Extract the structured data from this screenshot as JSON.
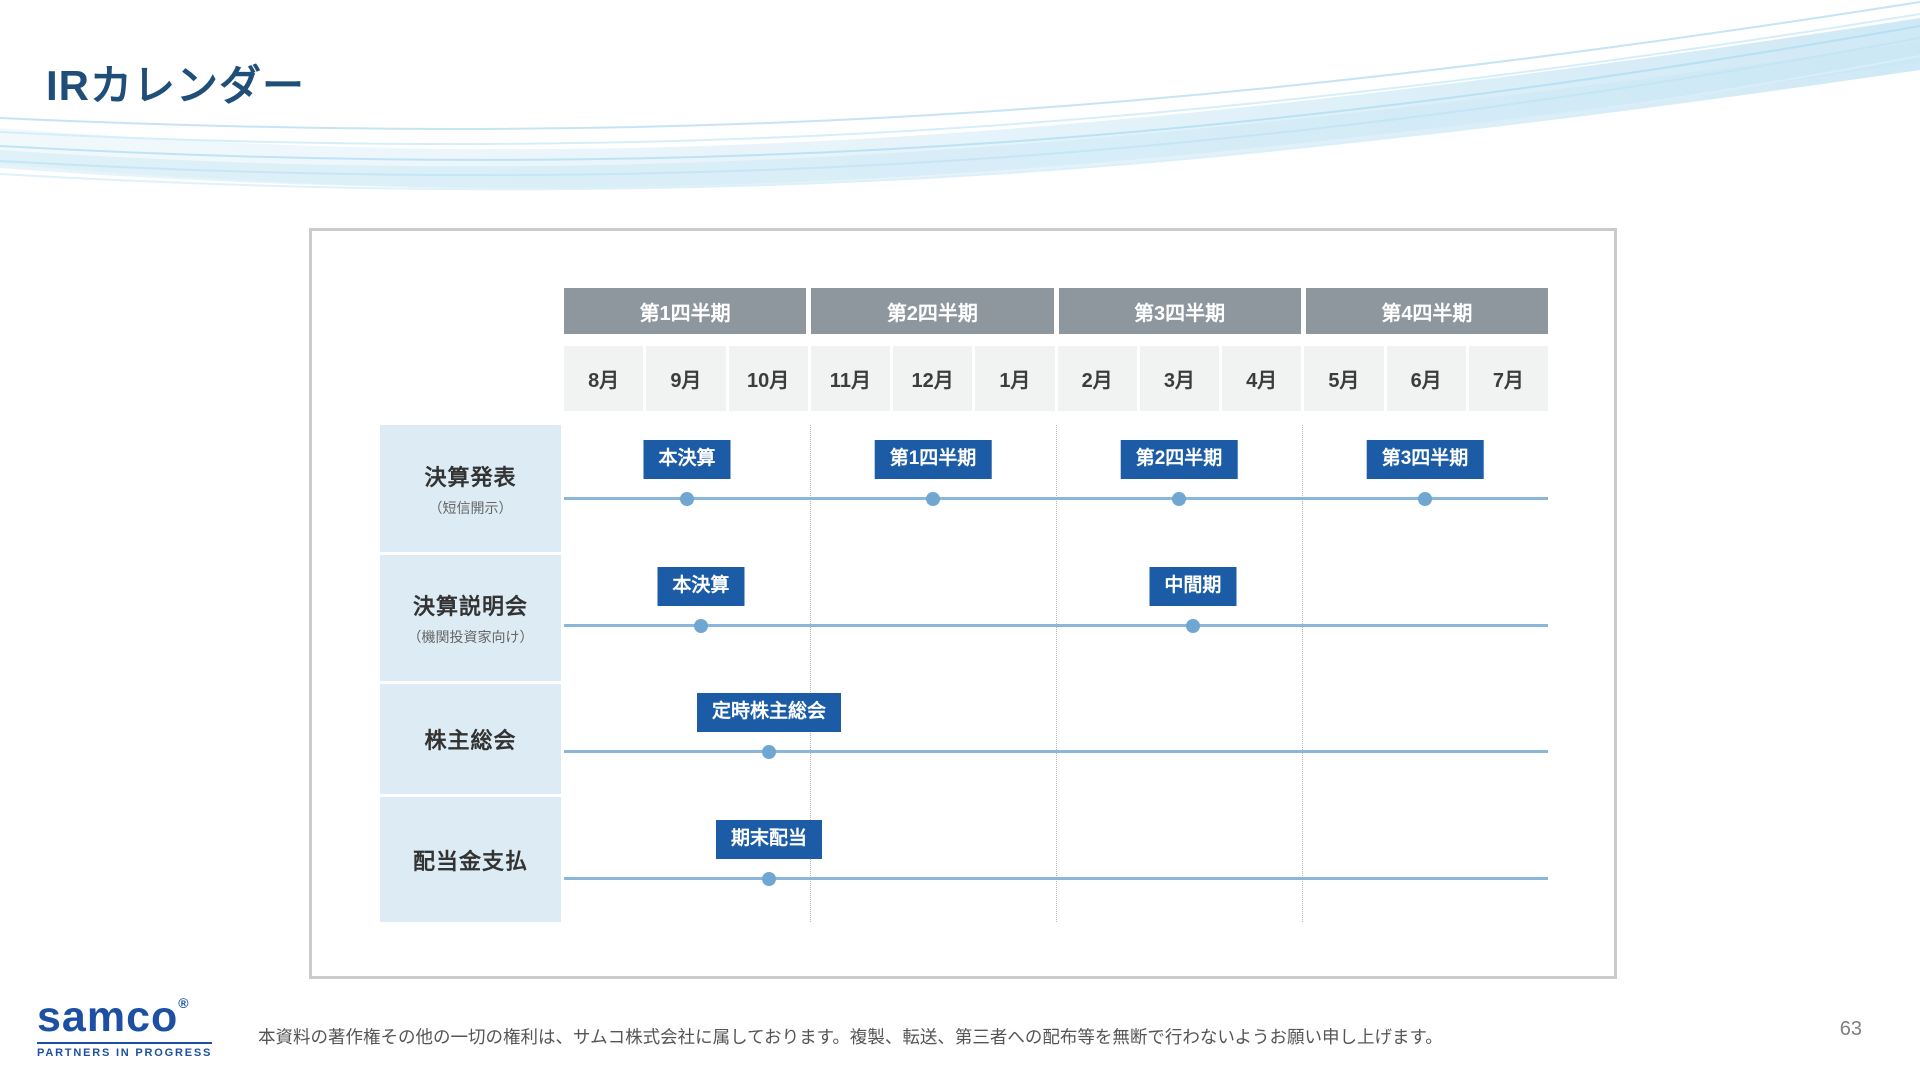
{
  "page": {
    "title": "IRカレンダー",
    "page_number": "63",
    "footer_text": "本資料の著作権その他の一切の権利は、サムコ株式会社に属しております。複製、転送、第三者への配布等を無断で行わないようお願い申し上げます。",
    "logo": {
      "wordmark": "samco",
      "registered": "®",
      "tagline": "PARTNERS IN PROGRESS"
    }
  },
  "calendar": {
    "quarter_headers": [
      "第1四半期",
      "第2四半期",
      "第3四半期",
      "第4四半期"
    ],
    "months": [
      "8月",
      "9月",
      "10月",
      "11月",
      "12月",
      "1月",
      "2月",
      "3月",
      "4月",
      "5月",
      "6月",
      "7月"
    ],
    "rows": [
      {
        "label": "決算発表",
        "sublabel": "（短信開示）",
        "events": [
          {
            "label": "本決算",
            "pos": 1.5
          },
          {
            "label": "第1四半期",
            "pos": 4.5
          },
          {
            "label": "第2四半期",
            "pos": 7.5
          },
          {
            "label": "第3四半期",
            "pos": 10.5
          }
        ]
      },
      {
        "label": "決算説明会",
        "sublabel": "（機関投資家向け）",
        "events": [
          {
            "label": "本決算",
            "pos": 1.67
          },
          {
            "label": "中間期",
            "pos": 7.67
          }
        ]
      },
      {
        "label": "株主総会",
        "sublabel": "",
        "events": [
          {
            "label": "定時株主総会",
            "pos": 2.5
          }
        ]
      },
      {
        "label": "配当金支払",
        "sublabel": "",
        "events": [
          {
            "label": "期末配当",
            "pos": 2.5
          }
        ]
      }
    ],
    "colors": {
      "title": "#1f4e79",
      "quarter_header_bg": "#8e979d",
      "month_cell_bg": "#f1f2f2",
      "row_label_bg": "#ddecf4",
      "badge_bg": "#1c5ca6",
      "timeline": "#8ab6da",
      "dot": "#6fa6d2"
    }
  }
}
